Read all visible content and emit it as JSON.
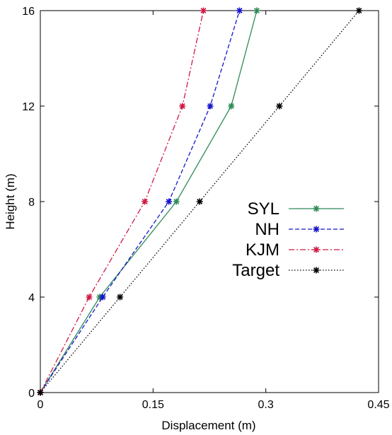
{
  "chart_data": {
    "type": "line",
    "xlabel": "Displacement (m)",
    "ylabel": "Height (m)",
    "xlim": [
      0,
      0.45
    ],
    "ylim": [
      0,
      16
    ],
    "xticks": [
      0,
      0.15,
      0.3,
      0.45
    ],
    "xtick_labels": [
      "0",
      "0.15",
      "0.3",
      "0.45"
    ],
    "yticks": [
      0,
      4,
      8,
      12,
      16
    ],
    "ytick_labels": [
      "0",
      "4",
      "8",
      "12",
      "16"
    ],
    "grid": false,
    "legend_position": "right",
    "marker": "asterisk",
    "y": [
      0,
      4,
      8,
      12,
      16
    ],
    "series": [
      {
        "name": "SYL",
        "color": "#2e8b57",
        "dash": "solid",
        "x": [
          0,
          0.079,
          0.181,
          0.254,
          0.288
        ]
      },
      {
        "name": "NH",
        "color": "#1515cc",
        "dash": "dashed",
        "x": [
          0,
          0.083,
          0.171,
          0.226,
          0.265
        ]
      },
      {
        "name": "KJM",
        "color": "#d01a44",
        "dash": "dashdot",
        "x": [
          0,
          0.065,
          0.139,
          0.189,
          0.217
        ]
      },
      {
        "name": "Target",
        "color": "#000000",
        "dash": "dotted",
        "x": [
          0,
          0.106,
          0.212,
          0.318,
          0.424
        ]
      }
    ]
  }
}
